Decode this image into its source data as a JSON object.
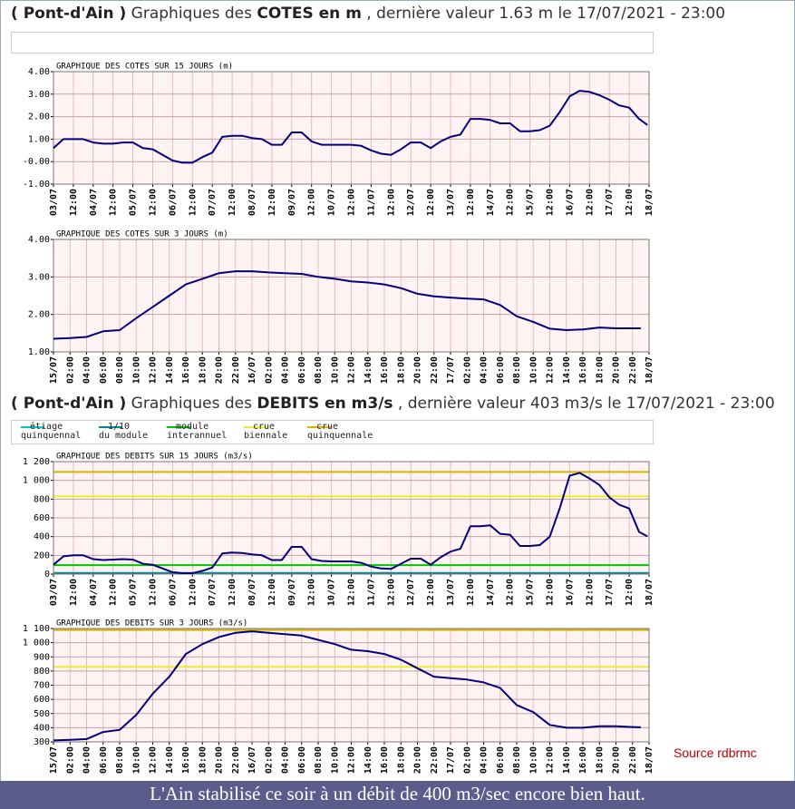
{
  "header_cotes": {
    "place": "( Pont-d'Ain )",
    "pre": " Graphiques des ",
    "topic": "COTES en m",
    "post": " , dernière valeur 1.63 m le 17/07/2021 - 23:00"
  },
  "header_debits": {
    "place": "( Pont-d'Ain )",
    "pre": " Graphiques des ",
    "topic": "DEBITS en m3/s",
    "post": " , dernière valeur 403 m3/s le 17/07/2021 - 23:00"
  },
  "legend": {
    "items": [
      {
        "label": [
          "étiage",
          "quinquennal"
        ],
        "color": "#00c8c8",
        "value": 10
      },
      {
        "label": [
          "1/10",
          "du module"
        ],
        "color": "#008b9b",
        "value": 12
      },
      {
        "label": [
          "module",
          "interannuel"
        ],
        "color": "#00c800",
        "value": 95
      },
      {
        "label": [
          "crue",
          "biennale"
        ],
        "color": "#eeee30",
        "value": 830
      },
      {
        "label": [
          "crue",
          "quinquennale"
        ],
        "color": "#d8b400",
        "value": 1090
      }
    ]
  },
  "source": "Source rdbrmc",
  "caption": "L'Ain stabilisé ce soir à un débit de 400 m3/sec encore bien haut.",
  "chart_data": [
    {
      "type": "line",
      "title": "GRAPHIQUE DES COTES SUR 15 JOURS (m)",
      "color": "#000080",
      "grid": true,
      "thresholds": false,
      "xlim": [
        0,
        360
      ],
      "xticks": [
        {
          "value": 0,
          "label": "03/07"
        },
        {
          "value": 12,
          "label": "12:00"
        },
        {
          "value": 24,
          "label": "04/07"
        },
        {
          "value": 36,
          "label": "12:00"
        },
        {
          "value": 48,
          "label": "05/07"
        },
        {
          "value": 60,
          "label": "12:00"
        },
        {
          "value": 72,
          "label": "06/07"
        },
        {
          "value": 84,
          "label": "12:00"
        },
        {
          "value": 96,
          "label": "07/07"
        },
        {
          "value": 108,
          "label": "12:00"
        },
        {
          "value": 120,
          "label": "08/07"
        },
        {
          "value": 132,
          "label": "12:00"
        },
        {
          "value": 144,
          "label": "09/07"
        },
        {
          "value": 156,
          "label": "12:00"
        },
        {
          "value": 168,
          "label": "10/07"
        },
        {
          "value": 180,
          "label": "12:00"
        },
        {
          "value": 192,
          "label": "11/07"
        },
        {
          "value": 204,
          "label": "12:00"
        },
        {
          "value": 216,
          "label": "12/07"
        },
        {
          "value": 228,
          "label": "12:00"
        },
        {
          "value": 240,
          "label": "13/07"
        },
        {
          "value": 252,
          "label": "12:00"
        },
        {
          "value": 264,
          "label": "14/07"
        },
        {
          "value": 276,
          "label": "12:00"
        },
        {
          "value": 288,
          "label": "15/07"
        },
        {
          "value": 300,
          "label": "12:00"
        },
        {
          "value": 312,
          "label": "16/07"
        },
        {
          "value": 324,
          "label": "12:00"
        },
        {
          "value": 336,
          "label": "17/07"
        },
        {
          "value": 348,
          "label": "12:00"
        },
        {
          "value": 360,
          "label": "18/07"
        }
      ],
      "ylim": [
        -1,
        4
      ],
      "yticks": [
        {
          "value": -1,
          "label": "-1.00"
        },
        {
          "value": 0,
          "label": "-0.00"
        },
        {
          "value": 1,
          "label": "1.00"
        },
        {
          "value": 2,
          "label": "2.00"
        },
        {
          "value": 3,
          "label": "3.00"
        },
        {
          "value": 4,
          "label": "4.00"
        }
      ],
      "x": [
        0,
        6,
        12,
        18,
        24,
        30,
        36,
        42,
        48,
        54,
        60,
        66,
        72,
        78,
        84,
        90,
        96,
        102,
        108,
        114,
        120,
        126,
        132,
        138,
        144,
        150,
        156,
        162,
        168,
        174,
        180,
        186,
        192,
        198,
        204,
        210,
        216,
        222,
        228,
        234,
        240,
        246,
        252,
        258,
        264,
        270,
        276,
        282,
        288,
        294,
        300,
        306,
        312,
        318,
        324,
        330,
        336,
        342,
        348,
        354,
        359
      ],
      "values": [
        0.6,
        1.0,
        1.0,
        1.0,
        0.85,
        0.8,
        0.8,
        0.85,
        0.85,
        0.6,
        0.55,
        0.3,
        0.05,
        -0.05,
        -0.05,
        0.2,
        0.4,
        1.1,
        1.15,
        1.15,
        1.05,
        1.0,
        0.75,
        0.75,
        1.3,
        1.3,
        0.9,
        0.75,
        0.75,
        0.75,
        0.75,
        0.7,
        0.5,
        0.35,
        0.3,
        0.55,
        0.85,
        0.85,
        0.6,
        0.9,
        1.1,
        1.2,
        1.9,
        1.9,
        1.85,
        1.7,
        1.7,
        1.35,
        1.35,
        1.4,
        1.6,
        2.2,
        2.9,
        3.15,
        3.1,
        2.95,
        2.75,
        2.5,
        2.4,
        1.9,
        1.63
      ]
    },
    {
      "type": "line",
      "title": "GRAPHIQUE DES COTES SUR 3 JOURS (m)",
      "color": "#000080",
      "grid": true,
      "thresholds": false,
      "xlim": [
        0,
        72
      ],
      "xticks": [
        {
          "value": 0,
          "label": "15/07"
        },
        {
          "value": 2,
          "label": "02:00"
        },
        {
          "value": 4,
          "label": "04:00"
        },
        {
          "value": 6,
          "label": "06:00"
        },
        {
          "value": 8,
          "label": "08:00"
        },
        {
          "value": 10,
          "label": "10:00"
        },
        {
          "value": 12,
          "label": "12:00"
        },
        {
          "value": 14,
          "label": "14:00"
        },
        {
          "value": 16,
          "label": "16:00"
        },
        {
          "value": 18,
          "label": "18:00"
        },
        {
          "value": 20,
          "label": "20:00"
        },
        {
          "value": 22,
          "label": "22:00"
        },
        {
          "value": 24,
          "label": "16/07"
        },
        {
          "value": 26,
          "label": "02:00"
        },
        {
          "value": 28,
          "label": "04:00"
        },
        {
          "value": 30,
          "label": "06:00"
        },
        {
          "value": 32,
          "label": "08:00"
        },
        {
          "value": 34,
          "label": "10:00"
        },
        {
          "value": 36,
          "label": "12:00"
        },
        {
          "value": 38,
          "label": "14:00"
        },
        {
          "value": 40,
          "label": "16:00"
        },
        {
          "value": 42,
          "label": "18:00"
        },
        {
          "value": 44,
          "label": "20:00"
        },
        {
          "value": 46,
          "label": "22:00"
        },
        {
          "value": 48,
          "label": "17/07"
        },
        {
          "value": 50,
          "label": "02:00"
        },
        {
          "value": 52,
          "label": "04:00"
        },
        {
          "value": 54,
          "label": "06:00"
        },
        {
          "value": 56,
          "label": "08:00"
        },
        {
          "value": 58,
          "label": "10:00"
        },
        {
          "value": 60,
          "label": "12:00"
        },
        {
          "value": 62,
          "label": "14:00"
        },
        {
          "value": 64,
          "label": "16:00"
        },
        {
          "value": 66,
          "label": "18:00"
        },
        {
          "value": 68,
          "label": "20:00"
        },
        {
          "value": 70,
          "label": "22:00"
        },
        {
          "value": 72,
          "label": "18/07"
        }
      ],
      "ylim": [
        1,
        4
      ],
      "yticks": [
        {
          "value": 1,
          "label": "1.00"
        },
        {
          "value": 2,
          "label": "2.00"
        },
        {
          "value": 3,
          "label": "3.00"
        },
        {
          "value": 4,
          "label": "4.00"
        }
      ],
      "x": [
        0,
        2,
        4,
        6,
        8,
        10,
        12,
        14,
        16,
        18,
        20,
        22,
        24,
        26,
        28,
        30,
        32,
        34,
        36,
        38,
        40,
        42,
        44,
        46,
        48,
        50,
        52,
        54,
        56,
        58,
        60,
        62,
        64,
        66,
        68,
        70,
        71
      ],
      "values": [
        1.35,
        1.37,
        1.4,
        1.55,
        1.58,
        1.9,
        2.2,
        2.5,
        2.8,
        2.95,
        3.1,
        3.15,
        3.15,
        3.12,
        3.1,
        3.08,
        3.0,
        2.95,
        2.88,
        2.85,
        2.8,
        2.7,
        2.55,
        2.48,
        2.45,
        2.42,
        2.4,
        2.25,
        1.95,
        1.8,
        1.62,
        1.58,
        1.6,
        1.65,
        1.63,
        1.63,
        1.63
      ]
    },
    {
      "type": "line",
      "title": "GRAPHIQUE DES DEBITS SUR 15 JOURS (m3/s)",
      "color": "#000080",
      "grid": true,
      "thresholds": true,
      "xlim": [
        0,
        360
      ],
      "xticks": [
        {
          "value": 0,
          "label": "03/07"
        },
        {
          "value": 12,
          "label": "12:00"
        },
        {
          "value": 24,
          "label": "04/07"
        },
        {
          "value": 36,
          "label": "12:00"
        },
        {
          "value": 48,
          "label": "05/07"
        },
        {
          "value": 60,
          "label": "12:00"
        },
        {
          "value": 72,
          "label": "06/07"
        },
        {
          "value": 84,
          "label": "12:00"
        },
        {
          "value": 96,
          "label": "07/07"
        },
        {
          "value": 108,
          "label": "12:00"
        },
        {
          "value": 120,
          "label": "08/07"
        },
        {
          "value": 132,
          "label": "12:00"
        },
        {
          "value": 144,
          "label": "09/07"
        },
        {
          "value": 156,
          "label": "12:00"
        },
        {
          "value": 168,
          "label": "10/07"
        },
        {
          "value": 180,
          "label": "12:00"
        },
        {
          "value": 192,
          "label": "11/07"
        },
        {
          "value": 204,
          "label": "12:00"
        },
        {
          "value": 216,
          "label": "12/07"
        },
        {
          "value": 228,
          "label": "12:00"
        },
        {
          "value": 240,
          "label": "13/07"
        },
        {
          "value": 252,
          "label": "12:00"
        },
        {
          "value": 264,
          "label": "14/07"
        },
        {
          "value": 276,
          "label": "12:00"
        },
        {
          "value": 288,
          "label": "15/07"
        },
        {
          "value": 300,
          "label": "12:00"
        },
        {
          "value": 312,
          "label": "16/07"
        },
        {
          "value": 324,
          "label": "12:00"
        },
        {
          "value": 336,
          "label": "17/07"
        },
        {
          "value": 348,
          "label": "12:00"
        },
        {
          "value": 360,
          "label": "18/07"
        }
      ],
      "ylim": [
        0,
        1200
      ],
      "yticks": [
        0,
        200,
        400,
        600,
        800,
        {
          "value": 1000,
          "label": "1 000"
        },
        {
          "value": 1200,
          "label": "1 200"
        }
      ],
      "x": [
        0,
        6,
        12,
        18,
        24,
        30,
        36,
        42,
        48,
        54,
        60,
        66,
        72,
        78,
        84,
        90,
        96,
        102,
        108,
        114,
        120,
        126,
        132,
        138,
        144,
        150,
        156,
        162,
        168,
        174,
        180,
        186,
        192,
        198,
        204,
        210,
        216,
        222,
        228,
        234,
        240,
        246,
        252,
        258,
        264,
        270,
        276,
        282,
        288,
        294,
        300,
        306,
        312,
        318,
        324,
        330,
        336,
        342,
        348,
        354,
        359
      ],
      "values": [
        100,
        190,
        200,
        200,
        160,
        150,
        155,
        160,
        155,
        110,
        100,
        60,
        20,
        10,
        10,
        35,
        70,
        220,
        230,
        225,
        210,
        200,
        150,
        150,
        290,
        290,
        160,
        140,
        135,
        135,
        135,
        120,
        80,
        60,
        55,
        110,
        165,
        165,
        100,
        180,
        240,
        270,
        510,
        510,
        520,
        430,
        420,
        300,
        300,
        310,
        400,
        700,
        1050,
        1080,
        1020,
        950,
        820,
        740,
        700,
        450,
        403
      ]
    },
    {
      "type": "line",
      "title": "GRAPHIQUE DES DEBITS SUR 3 JOURS (m3/s)",
      "color": "#000080",
      "grid": true,
      "thresholds": true,
      "xlim": [
        0,
        72
      ],
      "xticks": [
        {
          "value": 0,
          "label": "15/07"
        },
        {
          "value": 2,
          "label": "02:00"
        },
        {
          "value": 4,
          "label": "04:00"
        },
        {
          "value": 6,
          "label": "06:00"
        },
        {
          "value": 8,
          "label": "08:00"
        },
        {
          "value": 10,
          "label": "10:00"
        },
        {
          "value": 12,
          "label": "12:00"
        },
        {
          "value": 14,
          "label": "14:00"
        },
        {
          "value": 16,
          "label": "16:00"
        },
        {
          "value": 18,
          "label": "18:00"
        },
        {
          "value": 20,
          "label": "20:00"
        },
        {
          "value": 22,
          "label": "22:00"
        },
        {
          "value": 24,
          "label": "16/07"
        },
        {
          "value": 26,
          "label": "02:00"
        },
        {
          "value": 28,
          "label": "04:00"
        },
        {
          "value": 30,
          "label": "06:00"
        },
        {
          "value": 32,
          "label": "08:00"
        },
        {
          "value": 34,
          "label": "10:00"
        },
        {
          "value": 36,
          "label": "12:00"
        },
        {
          "value": 38,
          "label": "14:00"
        },
        {
          "value": 40,
          "label": "16:00"
        },
        {
          "value": 42,
          "label": "18:00"
        },
        {
          "value": 44,
          "label": "20:00"
        },
        {
          "value": 46,
          "label": "22:00"
        },
        {
          "value": 48,
          "label": "17/07"
        },
        {
          "value": 50,
          "label": "02:00"
        },
        {
          "value": 52,
          "label": "04:00"
        },
        {
          "value": 54,
          "label": "06:00"
        },
        {
          "value": 56,
          "label": "08:00"
        },
        {
          "value": 58,
          "label": "10:00"
        },
        {
          "value": 60,
          "label": "12:00"
        },
        {
          "value": 62,
          "label": "14:00"
        },
        {
          "value": 64,
          "label": "16:00"
        },
        {
          "value": 66,
          "label": "18:00"
        },
        {
          "value": 68,
          "label": "20:00"
        },
        {
          "value": 70,
          "label": "22:00"
        },
        {
          "value": 72,
          "label": "18/07"
        }
      ],
      "ylim": [
        300,
        1100
      ],
      "yticks": [
        300,
        400,
        500,
        600,
        700,
        800,
        900,
        {
          "value": 1000,
          "label": "1 000"
        },
        {
          "value": 1100,
          "label": "1 100"
        }
      ],
      "x": [
        0,
        2,
        4,
        6,
        8,
        10,
        12,
        14,
        16,
        18,
        20,
        22,
        24,
        26,
        28,
        30,
        32,
        34,
        36,
        38,
        40,
        42,
        44,
        46,
        48,
        50,
        52,
        54,
        56,
        58,
        60,
        62,
        64,
        66,
        68,
        70,
        71
      ],
      "values": [
        310,
        315,
        320,
        370,
        385,
        490,
        640,
        760,
        920,
        990,
        1040,
        1070,
        1080,
        1070,
        1060,
        1050,
        1020,
        990,
        950,
        940,
        920,
        880,
        820,
        760,
        750,
        740,
        720,
        680,
        560,
        510,
        420,
        400,
        400,
        410,
        410,
        405,
        403
      ]
    }
  ]
}
